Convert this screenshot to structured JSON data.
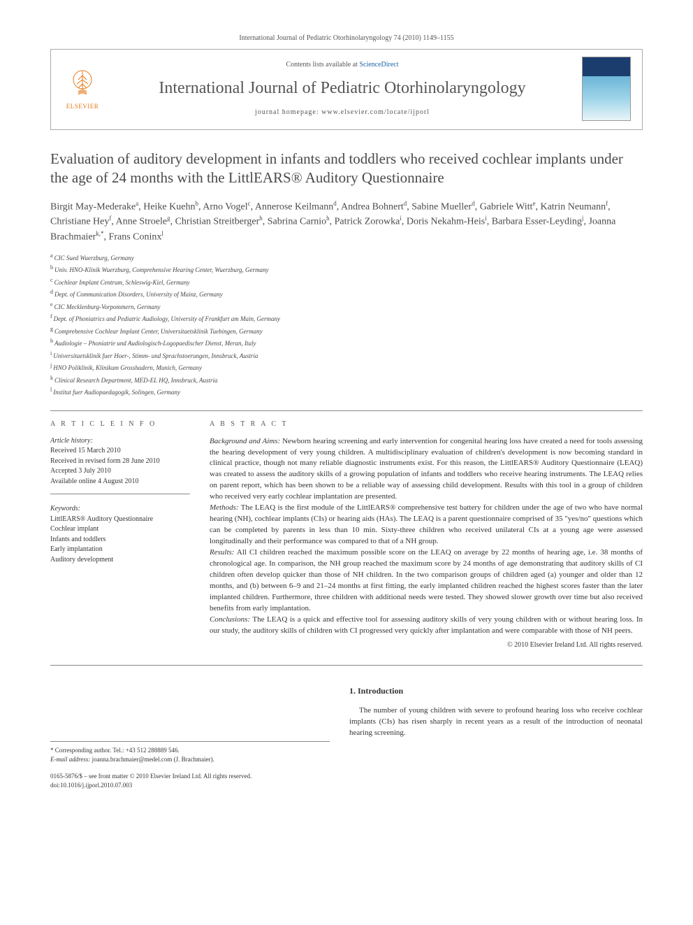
{
  "journal_ref": "International Journal of Pediatric Otorhinolaryngology 74 (2010) 1149–1155",
  "header": {
    "contents_prefix": "Contents lists available at ",
    "contents_link": "ScienceDirect",
    "journal_name": "International Journal of Pediatric Otorhinolaryngology",
    "homepage_prefix": "journal homepage: ",
    "homepage_url": "www.elsevier.com/locate/ijporl",
    "elsevier": "ELSEVIER"
  },
  "title": "Evaluation of auditory development in infants and toddlers who received cochlear implants under the age of 24 months with the LittlEARS® Auditory Questionnaire",
  "authors_html": "Birgit May-Mederake<sup>a</sup>, Heike Kuehn<sup>b</sup>, Arno Vogel<sup>c</sup>, Annerose Keilmann<sup>d</sup>, Andrea Bohnert<sup>d</sup>, Sabine Mueller<sup>d</sup>, Gabriele Witt<sup>e</sup>, Katrin Neumann<sup>f</sup>, Christiane Hey<sup>f</sup>, Anne Stroele<sup>g</sup>, Christian Streitberger<sup>h</sup>, Sabrina Carnio<sup>h</sup>, Patrick Zorowka<sup>i</sup>, Doris Nekahm-Heis<sup>i</sup>, Barbara Esser-Leyding<sup>j</sup>, Joanna Brachmaier<sup>k,*</sup>, Frans Coninx<sup>l</sup>",
  "affiliations": [
    {
      "sup": "a",
      "text": "CIC Sued Wuerzburg, Germany"
    },
    {
      "sup": "b",
      "text": "Univ. HNO-Klinik Wuerzburg, Comprehensive Hearing Center, Wuerzburg, Germany"
    },
    {
      "sup": "c",
      "text": "Cochlear Implant Centrum, Schleswig-Kiel, Germany"
    },
    {
      "sup": "d",
      "text": "Dept. of Communication Disorders, University of Mainz, Germany"
    },
    {
      "sup": "e",
      "text": "CIC Mecklenburg-Vorpommern, Germany"
    },
    {
      "sup": "f",
      "text": "Dept. of Phoniatrics and Pediatric Audiology, University of Frankfurt am Main, Germany"
    },
    {
      "sup": "g",
      "text": "Comprehensive Cochlear Implant Center, Universitaetsklinik Tuebingen, Germany"
    },
    {
      "sup": "h",
      "text": "Audiologie – Phoniatrie und Audiologisch-Logopaedischer Dienst, Meran, Italy"
    },
    {
      "sup": "i",
      "text": "Universitaetsklinik fuer Hoer-, Stimm- und Sprachstoerungen, Innsbruck, Austria"
    },
    {
      "sup": "j",
      "text": "HNO Poliklinik, Klinikum Grosshadern, Munich, Germany"
    },
    {
      "sup": "k",
      "text": "Clinical Research Department, MED-EL HQ, Innsbruck, Austria"
    },
    {
      "sup": "l",
      "text": "Institut fuer Audiopaedagogik, Solingen, Germany"
    }
  ],
  "article_info": {
    "head": "A R T I C L E   I N F O",
    "history_label": "Article history:",
    "received": "Received 15 March 2010",
    "revised": "Received in revised form 28 June 2010",
    "accepted": "Accepted 3 July 2010",
    "online": "Available online 4 August 2010",
    "keywords_label": "Keywords:",
    "keywords": [
      "LittlEARS® Auditory Questionnaire",
      "Cochlear implant",
      "Infants and toddlers",
      "Early implantation",
      "Auditory development"
    ]
  },
  "abstract": {
    "head": "A B S T R A C T",
    "background_label": "Background and Aims:",
    "background": "Newborn hearing screening and early intervention for congenital hearing loss have created a need for tools assessing the hearing development of very young children. A multidisciplinary evaluation of children's development is now becoming standard in clinical practice, though not many reliable diagnostic instruments exist. For this reason, the LittlEARS® Auditory Questionnaire (LEAQ) was created to assess the auditory skills of a growing population of infants and toddlers who receive hearing instruments. The LEAQ relies on parent report, which has been shown to be a reliable way of assessing child development. Results with this tool in a group of children who received very early cochlear implantation are presented.",
    "methods_label": "Methods:",
    "methods": "The LEAQ is the first module of the LittlEARS® comprehensive test battery for children under the age of two who have normal hearing (NH), cochlear implants (CIs) or hearing aids (HAs). The LEAQ is a parent questionnaire comprised of 35 \"yes/no\" questions which can be completed by parents in less than 10 min. Sixty-three children who received unilateral CIs at a young age were assessed longitudinally and their performance was compared to that of a NH group.",
    "results_label": "Results:",
    "results": "All CI children reached the maximum possible score on the LEAQ on average by 22 months of hearing age, i.e. 38 months of chronological age. In comparison, the NH group reached the maximum score by 24 months of age demonstrating that auditory skills of CI children often develop quicker than those of NH children. In the two comparison groups of children aged (a) younger and older than 12 months, and (b) between 6–9 and 21–24 months at first fitting, the early implanted children reached the highest scores faster than the later implanted children. Furthermore, three children with additional needs were tested. They showed slower growth over time but also received benefits from early implantation.",
    "conclusions_label": "Conclusions:",
    "conclusions": "The LEAQ is a quick and effective tool for assessing auditory skills of very young children with or without hearing loss. In our study, the auditory skills of children with CI progressed very quickly after implantation and were comparable with those of NH peers.",
    "copyright": "© 2010 Elsevier Ireland Ltd. All rights reserved."
  },
  "intro": {
    "head": "1. Introduction",
    "para": "The number of young children with severe to profound hearing loss who receive cochlear implants (CIs) has risen sharply in recent years as a result of the introduction of neonatal hearing screening."
  },
  "corr": {
    "star_label": "* Corresponding author. Tel.: +43 512 288889 546.",
    "email_label": "E-mail address:",
    "email": "joanna.brachmaier@medel.com",
    "email_who": "(J. Brachmaier)."
  },
  "footer": {
    "issn": "0165-5876/$ – see front matter © 2010 Elsevier Ireland Ltd. All rights reserved.",
    "doi": "doi:10.1016/j.ijporl.2010.07.003"
  },
  "colors": {
    "text": "#333333",
    "muted": "#555555",
    "link": "#1762a6",
    "elsevier_orange": "#e67817",
    "rule": "#888888"
  }
}
